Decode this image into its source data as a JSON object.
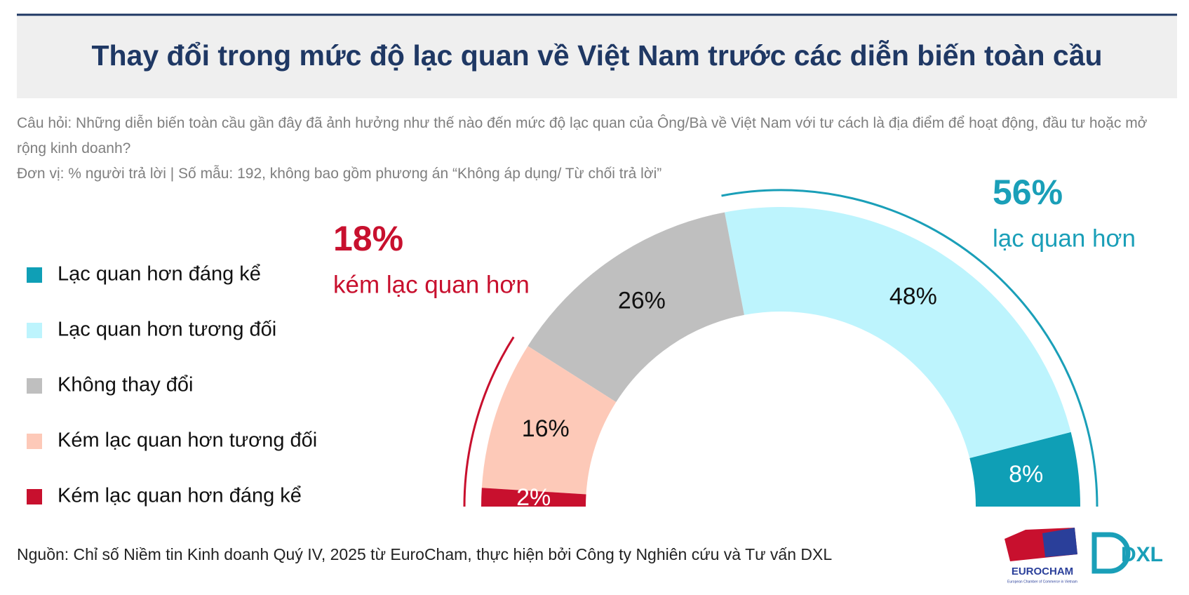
{
  "chart_data": {
    "type": "half-donut",
    "title": "Thay đổi trong mức độ lạc quan về Việt Nam trước các diễn biến toàn cầu",
    "question": "Câu hỏi: Những diễn biến toàn cầu gần đây đã ảnh hưởng như thế nào đến mức độ lạc quan của Ông/Bà về Việt Nam với tư cách là địa điểm để hoạt động, đầu tư hoặc mở rộng kinh doanh?",
    "unit_note": "Đơn vị: % người trả lời | Số mẫu: 192, không bao gồm phương án “Không áp dụng/ Từ chối trả lời”",
    "categories": [
      "Lạc quan hơn đáng kể",
      "Lạc quan hơn tương đối",
      "Không thay đổi",
      "Kém lạc quan hơn tương đối",
      "Kém lạc quan hơn đáng kể"
    ],
    "values": [
      8,
      48,
      26,
      16,
      2
    ],
    "value_labels": [
      "8%",
      "48%",
      "26%",
      "16%",
      "2%"
    ],
    "colors": [
      "#0f9fb6",
      "#bdf4fd",
      "#bfbfbf",
      "#fdc9b8",
      "#c8102e"
    ],
    "groups": [
      {
        "name": "lạc quan hơn",
        "value": 56,
        "value_label": "56%",
        "color": "#1a9fb8"
      },
      {
        "name": "kém lạc quan hơn",
        "value": 18,
        "value_label": "18%",
        "color": "#c8102e"
      }
    ],
    "source": "Nguồn: Chỉ số Niềm tin Kinh doanh Quý IV, 2025 từ EuroCham, thực hiện bởi Công ty Nghiên cứu và Tư vấn DXL",
    "logos": [
      "EUROCHAM",
      "European Chamber of Commerce in Vietnam",
      "DXL"
    ]
  }
}
